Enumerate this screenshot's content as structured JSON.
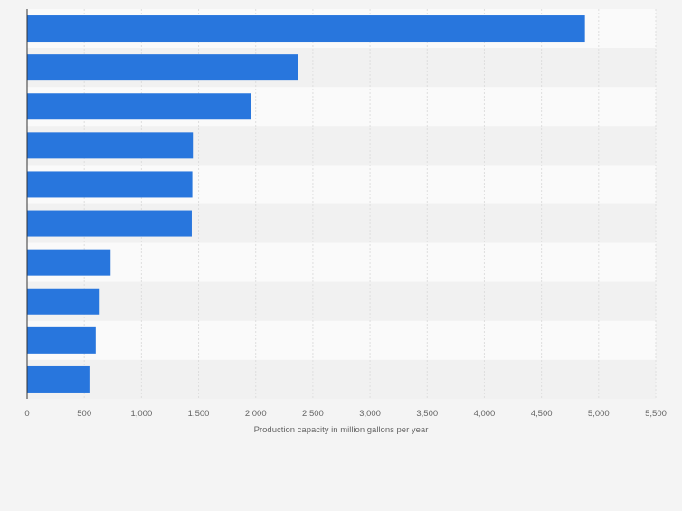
{
  "chart_data": {
    "type": "bar",
    "orientation": "horizontal",
    "categories": [
      "",
      "",
      "",
      "",
      "",
      "",
      "",
      "",
      "",
      ""
    ],
    "values": [
      4880,
      2370,
      1960,
      1450,
      1445,
      1440,
      730,
      635,
      600,
      545
    ],
    "xlabel": "Production capacity in million gallons per year",
    "ylabel": "",
    "xlim": [
      0,
      5500
    ],
    "xticks": [
      0,
      500,
      1000,
      1500,
      2000,
      2500,
      3000,
      3500,
      4000,
      4500,
      5000,
      5500
    ],
    "xtick_labels": [
      "0",
      "500",
      "1,000",
      "1,500",
      "2,000",
      "2,500",
      "3,000",
      "3,500",
      "4,000",
      "4,500",
      "5,000",
      "5,500"
    ],
    "grid": true,
    "legend": "none",
    "colors": {
      "bar": "#2876dd",
      "background": "#f4f4f4",
      "band_light": "#fafafa",
      "band_dark": "#f1f1f1",
      "grid": "#dedede",
      "axis": "#333333",
      "text": "#666666"
    }
  }
}
